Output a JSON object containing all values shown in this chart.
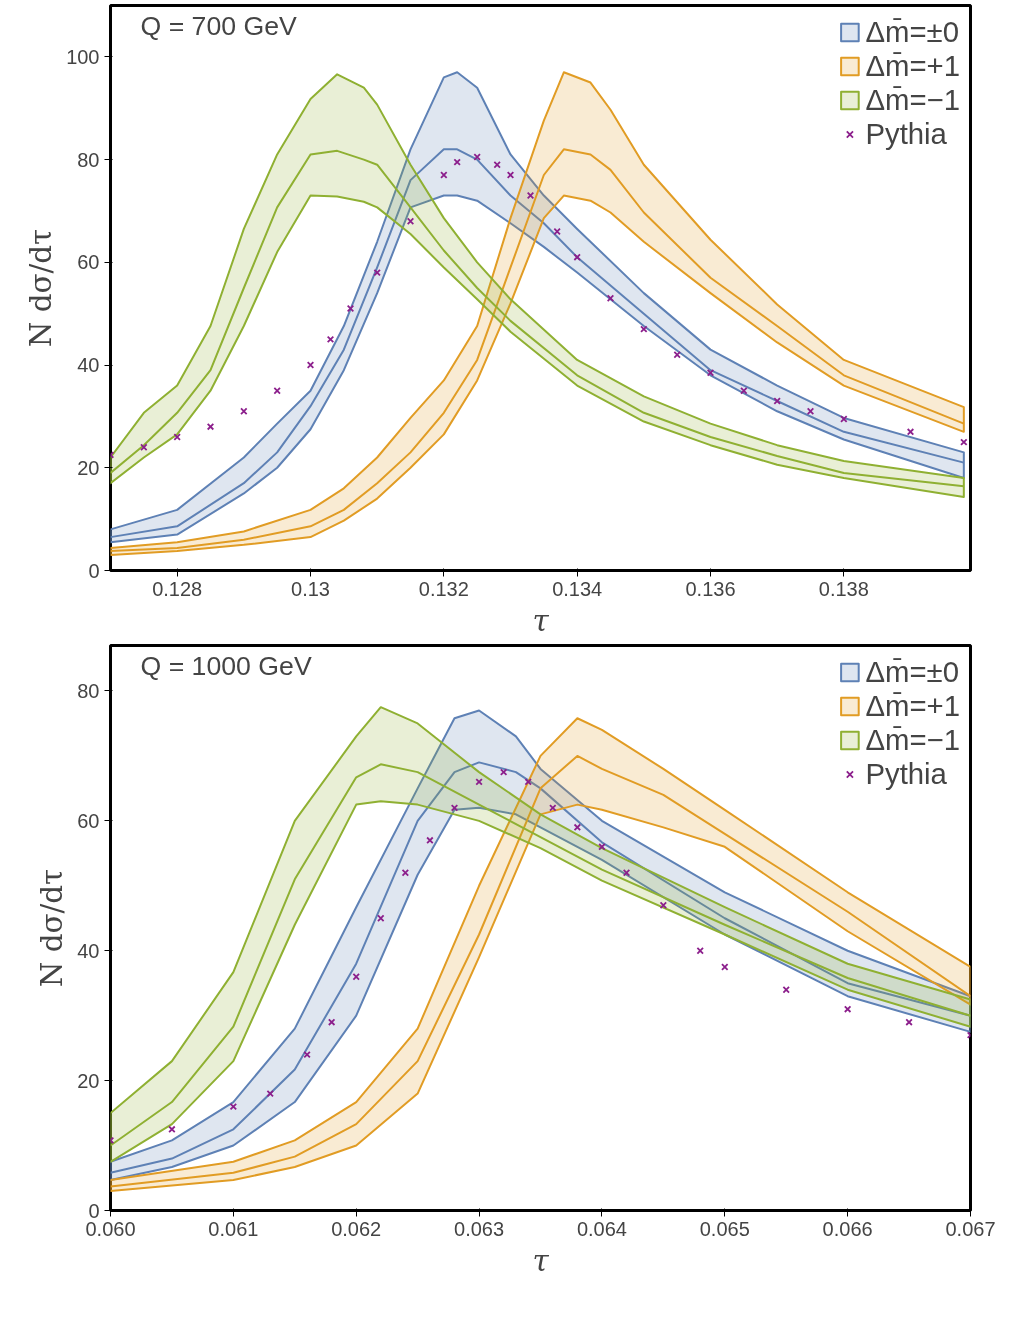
{
  "chart_data": [
    {
      "type": "line",
      "xlabel": "τ",
      "ylabel": "N dσ/dτ",
      "annotations": [
        "Q = 700 GeV"
      ],
      "xlim": [
        0.127,
        0.1399
      ],
      "ylim": [
        0,
        110
      ],
      "xticks": [
        0.128,
        0.13,
        0.132,
        0.134,
        0.136,
        0.138
      ],
      "yticks": [
        0,
        20,
        40,
        60,
        80,
        100
      ],
      "grid": false,
      "legend": "top right",
      "series": [
        {
          "name": "Δm̄=±0",
          "color": "#5e81b5",
          "x": [
            0.127,
            0.128,
            0.129,
            0.1295,
            0.13,
            0.1305,
            0.131,
            0.1315,
            0.132,
            0.1322,
            0.1325,
            0.133,
            0.1335,
            0.134,
            0.135,
            0.136,
            0.137,
            0.138,
            0.1398
          ],
          "values": [
            6.5,
            8.6,
            17,
            23,
            32,
            43,
            59,
            76,
            82,
            82,
            80,
            73,
            67.6,
            61,
            50,
            39,
            33,
            27,
            21
          ],
          "lower": [
            5.5,
            7,
            15,
            20,
            27.5,
            39,
            54,
            70.7,
            73,
            73,
            72,
            67.6,
            63,
            58,
            47.6,
            38,
            31,
            25.5,
            18
          ],
          "upper": [
            8,
            11.8,
            22,
            28.6,
            35,
            47.6,
            64,
            82,
            96,
            97,
            94,
            81,
            73,
            66.5,
            54,
            43,
            36,
            29.7,
            23
          ]
        },
        {
          "name": "Δm̄=+1",
          "color": "#e19c24",
          "x": [
            0.127,
            0.128,
            0.129,
            0.13,
            0.1305,
            0.131,
            0.1315,
            0.132,
            0.1325,
            0.133,
            0.1335,
            0.1338,
            0.1342,
            0.1345,
            0.135,
            0.136,
            0.137,
            0.138,
            0.1398
          ],
          "values": [
            3.8,
            4.4,
            6,
            8.6,
            11.8,
            17,
            23,
            30.7,
            41,
            59,
            77,
            82,
            81,
            78,
            69.7,
            57,
            47.6,
            38,
            28.6
          ],
          "lower": [
            3,
            3.8,
            5,
            6.5,
            9.7,
            14,
            20,
            26.5,
            37,
            52,
            68.6,
            73,
            72,
            69.7,
            64,
            54,
            44.4,
            36,
            27
          ],
          "upper": [
            4.4,
            5.5,
            7.6,
            11.8,
            16,
            22,
            29.7,
            37,
            47.6,
            68.6,
            87.6,
            97,
            95,
            89.7,
            79,
            64.4,
            51.8,
            41,
            31.8
          ]
        },
        {
          "name": "Δm̄=−1",
          "color": "#8fb032",
          "x": [
            0.127,
            0.1275,
            0.128,
            0.1285,
            0.129,
            0.1295,
            0.13,
            0.1304,
            0.1308,
            0.131,
            0.1315,
            0.132,
            0.1325,
            0.133,
            0.134,
            0.135,
            0.136,
            0.137,
            0.138,
            0.1398
          ],
          "values": [
            19,
            24.4,
            30.7,
            39,
            55,
            70.7,
            81,
            81.7,
            80,
            79,
            70.7,
            62.3,
            55,
            48.6,
            38,
            30.7,
            26,
            22.3,
            19,
            16.4
          ],
          "lower": [
            17,
            22,
            26.5,
            35,
            47.6,
            62,
            73,
            72.8,
            71.8,
            70.7,
            65.5,
            59,
            52.8,
            46.5,
            36,
            29,
            24.4,
            20.6,
            18,
            14.3
          ],
          "upper": [
            22,
            30.7,
            36,
            47.6,
            66.5,
            81,
            91.8,
            96.6,
            94,
            90.7,
            79,
            68.6,
            60,
            52.8,
            41,
            33.9,
            28.6,
            24.4,
            21.3,
            18
          ]
        },
        {
          "name": "Pythia",
          "type": "scatter",
          "marker": "cross",
          "color": "#8c1f8c",
          "x": [
            0.127,
            0.1275,
            0.128,
            0.1285,
            0.129,
            0.1295,
            0.13,
            0.1303,
            0.1306,
            0.131,
            0.1315,
            0.132,
            0.1322,
            0.1325,
            0.1328,
            0.133,
            0.1333,
            0.1337,
            0.134,
            0.1345,
            0.135,
            0.1355,
            0.136,
            0.1365,
            0.137,
            0.1375,
            0.138,
            0.139,
            0.1398
          ],
          "values": [
            22.5,
            24,
            26,
            28,
            31,
            35,
            40,
            45,
            51,
            58,
            68,
            77,
            79.5,
            80.5,
            79,
            77,
            73,
            66,
            61,
            53,
            47,
            42,
            38.5,
            35,
            33,
            31,
            29.5,
            27,
            25
          ]
        }
      ]
    },
    {
      "type": "line",
      "xlabel": "τ",
      "ylabel": "N dσ/dτ",
      "annotations": [
        "Q = 1000 GeV"
      ],
      "xlim": [
        0.06,
        0.067
      ],
      "ylim": [
        0,
        87
      ],
      "xticks": [
        {
          "value": 0.06,
          "label": "0.060"
        },
        0.061,
        0.062,
        0.063,
        0.064,
        0.065,
        0.066,
        0.067
      ],
      "yticks": [
        0,
        20,
        40,
        60,
        80
      ],
      "grid": false,
      "legend": "top right",
      "series": [
        {
          "name": "Δm̄=±0",
          "color": "#5e81b5",
          "x": [
            0.06,
            0.0605,
            0.061,
            0.0615,
            0.062,
            0.0625,
            0.0628,
            0.063,
            0.0633,
            0.0635,
            0.064,
            0.065,
            0.066,
            0.067
          ],
          "values": [
            5.8,
            8,
            12.5,
            21.7,
            38,
            60,
            67.5,
            69,
            67.5,
            65,
            56.7,
            45,
            35,
            30
          ],
          "lower": [
            4.7,
            6.7,
            10,
            16.7,
            30,
            51.7,
            61.7,
            62,
            61,
            59,
            54,
            42.5,
            33,
            27.5
          ],
          "upper": [
            7.5,
            10.8,
            16.7,
            28,
            46.7,
            65,
            75.8,
            77,
            73,
            68,
            60,
            49,
            40,
            33
          ]
        },
        {
          "name": "Δm̄=+1",
          "color": "#e19c24",
          "x": [
            0.06,
            0.061,
            0.0615,
            0.062,
            0.0625,
            0.063,
            0.0635,
            0.0638,
            0.064,
            0.0645,
            0.065,
            0.066,
            0.067
          ],
          "values": [
            3.7,
            5.8,
            8.3,
            13.3,
            23,
            42.5,
            65,
            70,
            68,
            64,
            58,
            46,
            33
          ],
          "lower": [
            3,
            4.7,
            6.7,
            10,
            18,
            39,
            61,
            62.5,
            61.7,
            59,
            56,
            43,
            31.7
          ],
          "upper": [
            4.7,
            7.5,
            10.8,
            16.7,
            28,
            50,
            70,
            75.8,
            74,
            68,
            61.7,
            49,
            37.5
          ]
        },
        {
          "name": "Δm̄=−1",
          "color": "#8fb032",
          "x": [
            0.06,
            0.0605,
            0.061,
            0.0615,
            0.062,
            0.0622,
            0.0625,
            0.063,
            0.0635,
            0.064,
            0.065,
            0.066,
            0.067
          ],
          "values": [
            10,
            16.7,
            28.3,
            51,
            66.7,
            68.7,
            67.5,
            62.5,
            57.5,
            52.5,
            44,
            35.8,
            30
          ],
          "lower": [
            7.5,
            13.3,
            23,
            44,
            62.5,
            63,
            62.5,
            60,
            55.8,
            50.8,
            42.5,
            34,
            28.3
          ],
          "upper": [
            15,
            23,
            36.7,
            60,
            73,
            77.5,
            75,
            67.5,
            61,
            55.8,
            46.7,
            38,
            32.5
          ]
        },
        {
          "name": "Pythia",
          "type": "scatter",
          "marker": "cross",
          "color": "#8c1f8c",
          "x": [
            0.06,
            0.0605,
            0.061,
            0.0613,
            0.0616,
            0.0618,
            0.062,
            0.0622,
            0.0624,
            0.0626,
            0.0628,
            0.063,
            0.0632,
            0.0634,
            0.0636,
            0.0638,
            0.064,
            0.0642,
            0.0645,
            0.0648,
            0.065,
            0.0655,
            0.066,
            0.0665,
            0.067
          ],
          "values": [
            10.8,
            12.5,
            16,
            18,
            24,
            29,
            36,
            45,
            52,
            57,
            62,
            66,
            67.5,
            66,
            62,
            59,
            56,
            52,
            47,
            40,
            37.5,
            34,
            31,
            29,
            27
          ]
        }
      ]
    }
  ]
}
